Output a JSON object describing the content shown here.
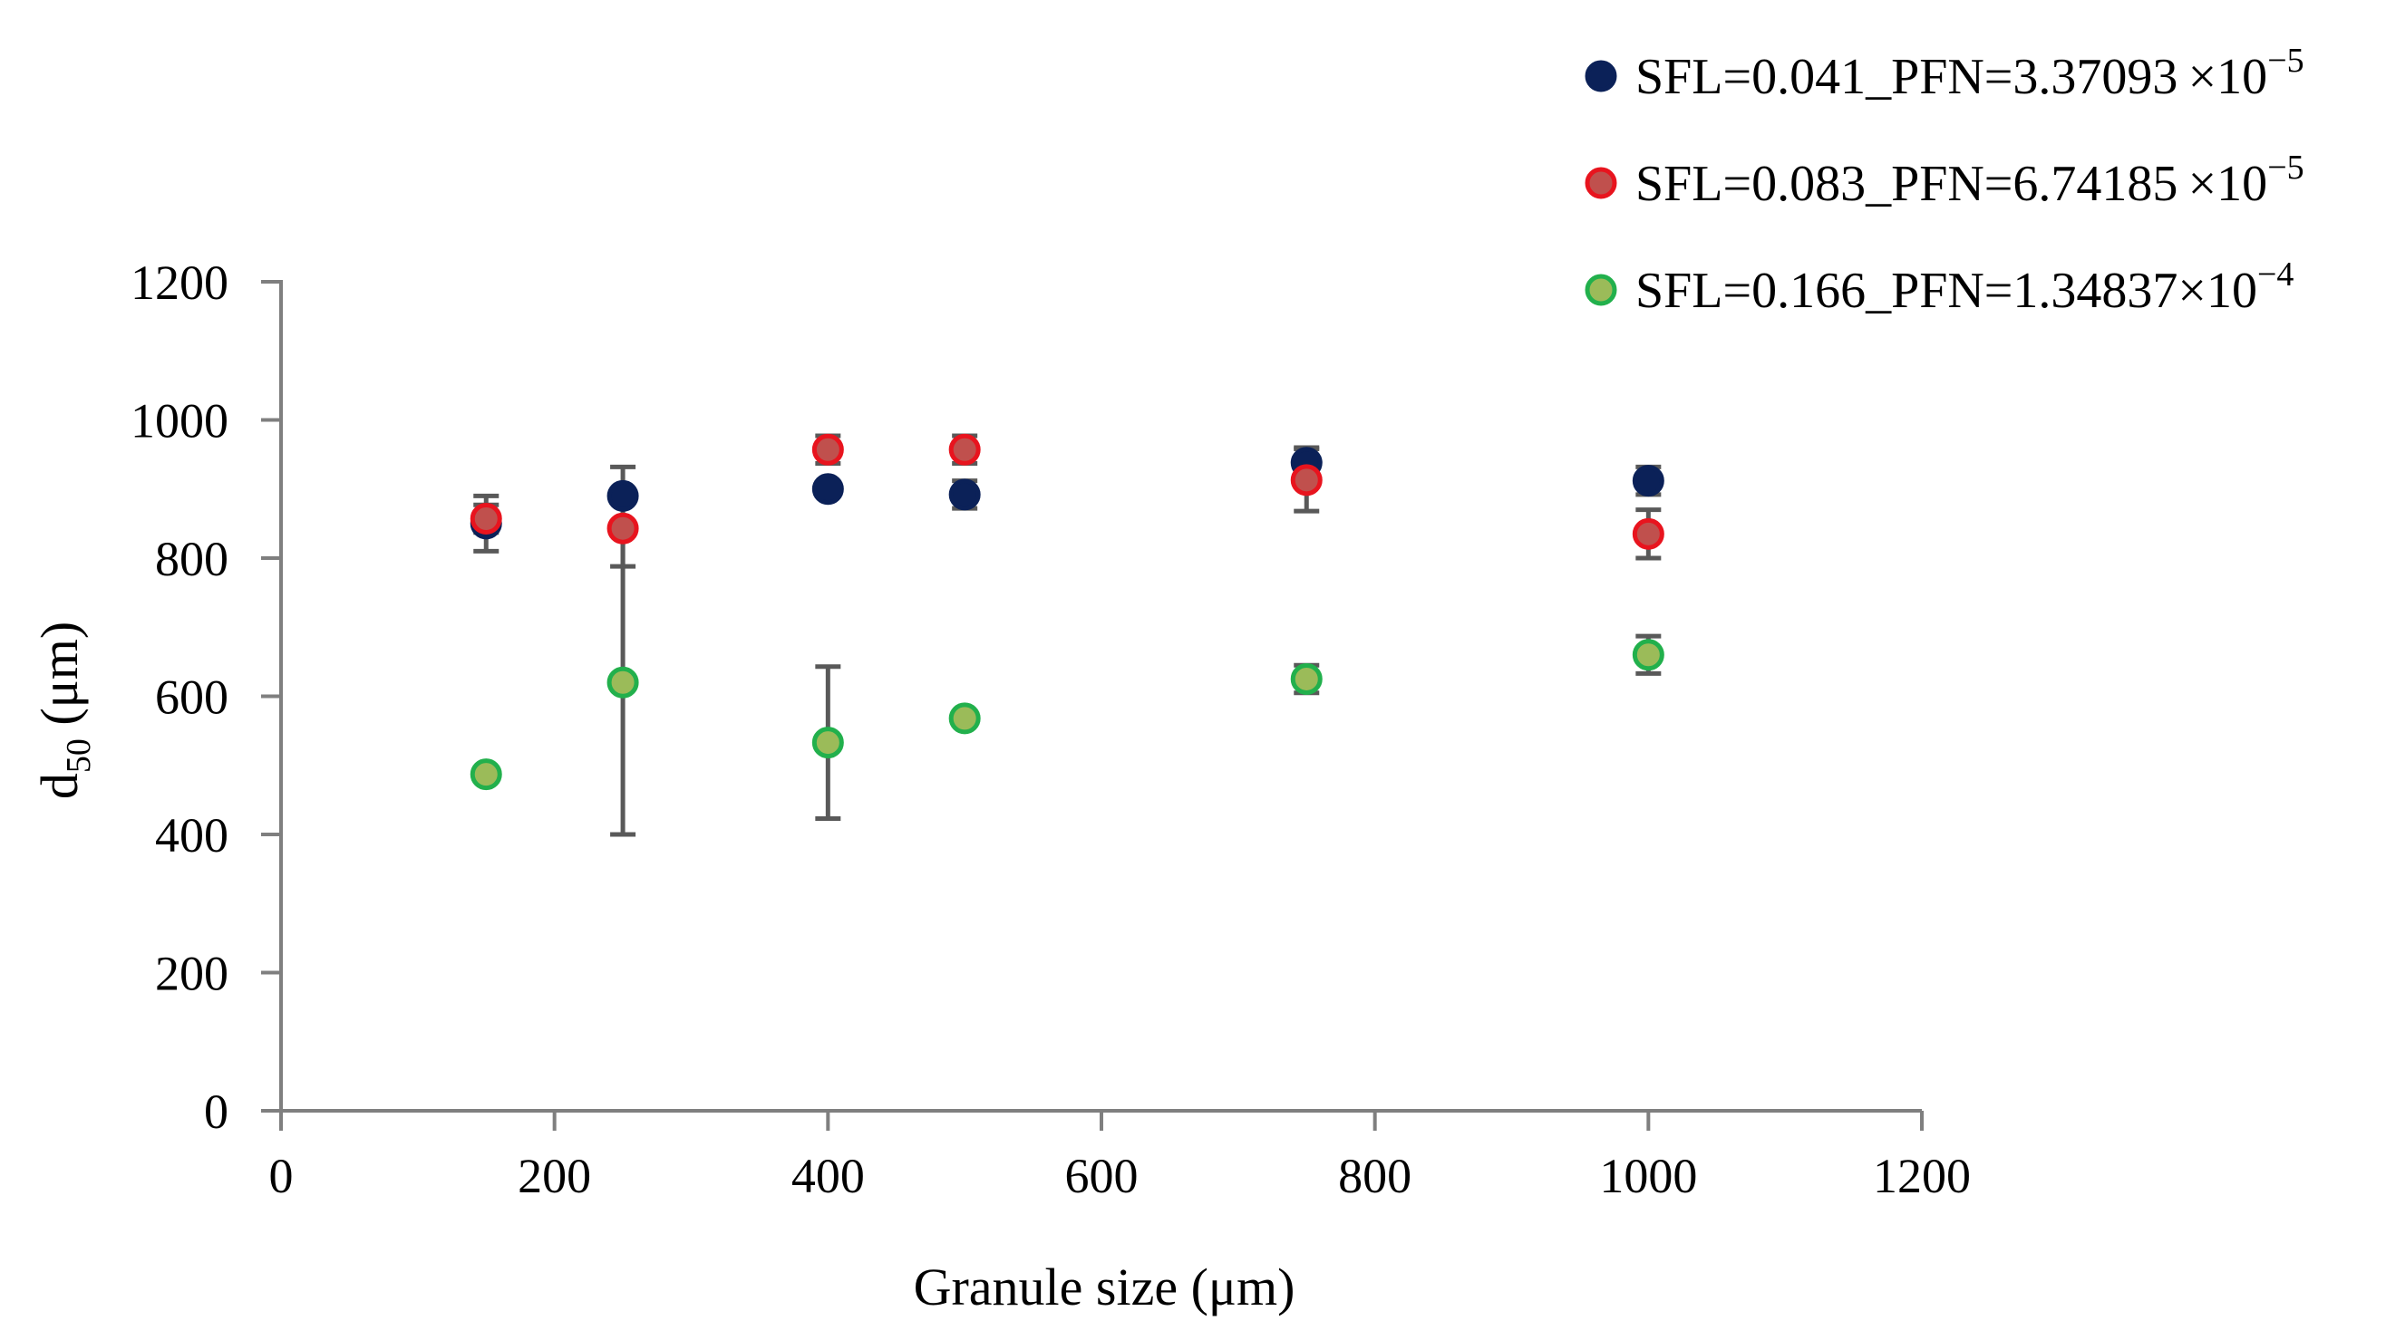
{
  "chart_data": {
    "type": "scatter",
    "xlabel": "Granule size (μm)",
    "ylabel": {
      "main": "d",
      "subscript": "50",
      "unit": " (μm)"
    },
    "xlim": [
      0,
      1200
    ],
    "ylim": [
      0,
      1200
    ],
    "xticks": [
      "0",
      "200",
      "400",
      "600",
      "800",
      "1000",
      "1200"
    ],
    "yticks": [
      "0",
      "200",
      "400",
      "600",
      "800",
      "1000",
      "1200"
    ],
    "legend_position": "top-right",
    "series": [
      {
        "name": "SFL=0.041_PFN=3.37093×10−5",
        "legend": {
          "prefix": "SFL=0.041_PFN=3.37093 ×10",
          "exponent": "−5"
        },
        "fill": "#0b2158",
        "stroke": "#0b2158",
        "points": [
          {
            "x": 150,
            "y": 850,
            "err": 40
          },
          {
            "x": 250,
            "y": 890,
            "err": 42
          },
          {
            "x": 400,
            "y": 900,
            "err": 0
          },
          {
            "x": 500,
            "y": 892,
            "err": 20
          },
          {
            "x": 750,
            "y": 938,
            "err": 22
          },
          {
            "x": 1000,
            "y": 912,
            "err": 20
          }
        ]
      },
      {
        "name": "SFL=0.083_PFN=6.74185×10−5",
        "legend": {
          "prefix": "SFL=0.083_PFN=6.74185 ×10",
          "exponent": "−5"
        },
        "fill": "#c0504d",
        "stroke": "#e8141e",
        "points": [
          {
            "x": 150,
            "y": 857,
            "err": 20
          },
          {
            "x": 250,
            "y": 843,
            "err": 55
          },
          {
            "x": 400,
            "y": 957,
            "err": 20
          },
          {
            "x": 500,
            "y": 957,
            "err": 20
          },
          {
            "x": 750,
            "y": 913,
            "err": 45
          },
          {
            "x": 1000,
            "y": 835,
            "err": 35
          }
        ]
      },
      {
        "name": "SFL=0.166_PFN=1.34837×10−4",
        "legend": {
          "prefix": "SFL=0.166_PFN=1.34837×10",
          "exponent": "−4"
        },
        "fill": "#9bbb59",
        "stroke": "#22b04c",
        "points": [
          {
            "x": 150,
            "y": 487,
            "err": 0
          },
          {
            "x": 250,
            "y": 620,
            "err": 220
          },
          {
            "x": 400,
            "y": 533,
            "err": 110
          },
          {
            "x": 500,
            "y": 568,
            "err": 0
          },
          {
            "x": 750,
            "y": 625,
            "err": 20
          },
          {
            "x": 1000,
            "y": 660,
            "err": 27
          }
        ]
      }
    ],
    "colors": {
      "axis": "#7f7f7f",
      "errorbar": "#595959"
    }
  }
}
